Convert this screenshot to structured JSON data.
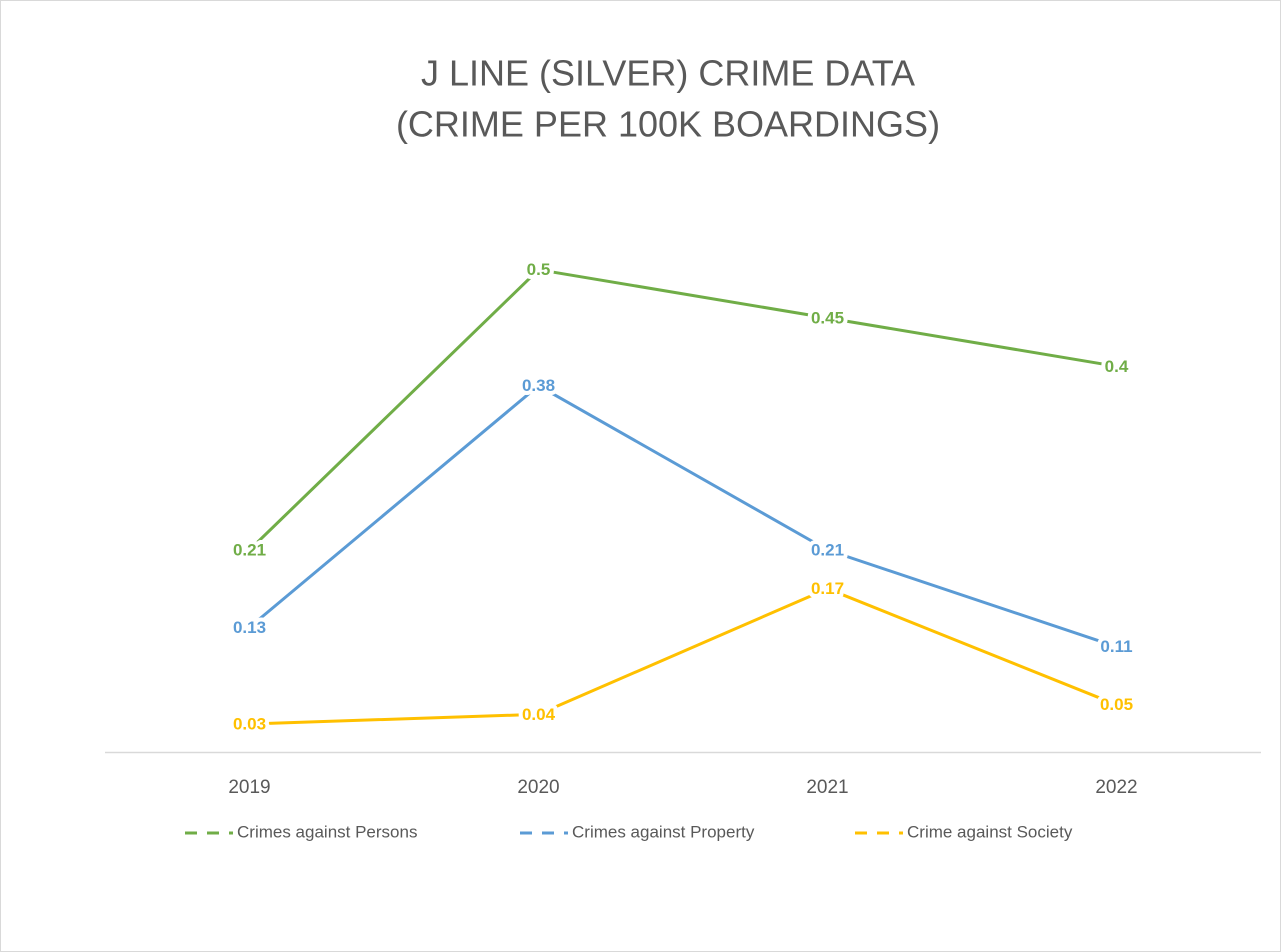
{
  "chart_data": {
    "type": "line",
    "title": "J LINE (SILVER) CRIME DATA",
    "subtitle": "(CRIME PER 100K BOARDINGS)",
    "categories": [
      "2019",
      "2020",
      "2021",
      "2022"
    ],
    "ylim": [
      0,
      0.6
    ],
    "legend": "bottom",
    "series": [
      {
        "name": "Crimes against Persons",
        "color": "#70ad47",
        "values": [
          0.21,
          0.5,
          0.45,
          0.4
        ]
      },
      {
        "name": "Crimes against Property",
        "color": "#5b9bd5",
        "values": [
          0.13,
          0.38,
          0.21,
          0.11
        ]
      },
      {
        "name": "Crime against Society",
        "color": "#ffc000",
        "values": [
          0.03,
          0.04,
          0.17,
          0.05
        ]
      }
    ]
  }
}
